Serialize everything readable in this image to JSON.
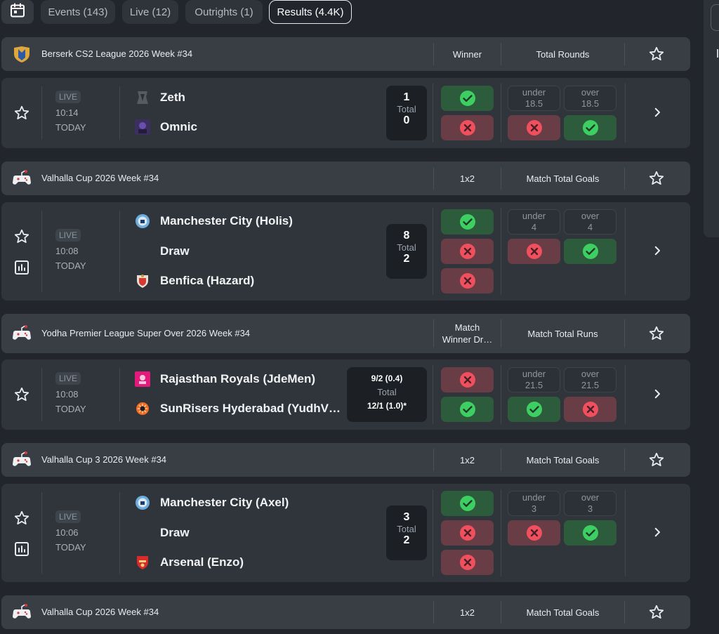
{
  "icons": {
    "calendar": "calendar-icon",
    "star": "star-icon",
    "stats": "stats-icon",
    "check": "check-icon",
    "cross": "cross-icon",
    "chevron": "chevron-right-icon",
    "controller": "gamepad-icon"
  },
  "colors": {
    "win": "#2d5c3c",
    "lose": "#693d46",
    "check_circle": "#3ecf63",
    "cross_circle": "#f0505e"
  },
  "tabs": [
    {
      "label": "Events (143)",
      "active": false
    },
    {
      "label": "Live (12)",
      "active": false
    },
    {
      "label": "Outrights (1)",
      "active": false
    },
    {
      "label": "Results (4.4K)",
      "active": true
    }
  ],
  "leagues": [
    {
      "name": "Berserk CS2 League 2026 Week #34",
      "col1": "Winner",
      "col2": "Total Rounds"
    },
    {
      "name": "Valhalla Cup 2026 Week #34",
      "col1": "1x2",
      "col2": "Match Total Goals"
    },
    {
      "name": "Yodha Premier League Super Over 2026 Week #34",
      "col1": "Match Winner Dr…",
      "col2": "Match Total Runs"
    },
    {
      "name": "Valhalla Cup 3 2026 Week #34",
      "col1": "1x2",
      "col2": "Match Total Goals"
    },
    {
      "name": "Valhalla Cup 2026 Week #34",
      "col1": "1x2",
      "col2": "Match Total Goals"
    }
  ],
  "matches": [
    {
      "live": "LIVE",
      "time": "10:14",
      "day": "TODAY",
      "teams": [
        "Zeth",
        "Omnic"
      ],
      "score": {
        "home": "1",
        "label": "Total",
        "away": "0"
      },
      "results": [
        "win",
        "lose"
      ],
      "totals": {
        "under_label": "under",
        "over_label": "over",
        "line": "18.5",
        "under": "lose",
        "over": "win"
      }
    },
    {
      "live": "LIVE",
      "time": "10:08",
      "day": "TODAY",
      "teams": [
        "Manchester City (Holis)",
        "Draw",
        "Benfica (Hazard)"
      ],
      "score": {
        "home": "8",
        "label": "Total",
        "away": "2"
      },
      "results": [
        "win",
        "lose",
        "lose"
      ],
      "totals": {
        "under_label": "under",
        "over_label": "over",
        "line": "4",
        "under": "lose",
        "over": "win"
      }
    },
    {
      "live": "LIVE",
      "time": "10:08",
      "day": "TODAY",
      "teams": [
        "Rajasthan Royals (JdeMen)",
        "SunRisers Hyderabad (YudhV…"
      ],
      "score": {
        "home": "9/2 (0.4)",
        "label": "Total",
        "away": "12/1 (1.0)*"
      },
      "results": [
        "lose",
        "win"
      ],
      "totals": {
        "under_label": "under",
        "over_label": "over",
        "line": "21.5",
        "under": "win",
        "over": "lose"
      }
    },
    {
      "live": "LIVE",
      "time": "10:06",
      "day": "TODAY",
      "teams": [
        "Manchester City (Axel)",
        "Draw",
        "Arsenal (Enzo)"
      ],
      "score": {
        "home": "3",
        "label": "Total",
        "away": "2"
      },
      "results": [
        "win",
        "lose",
        "lose"
      ],
      "totals": {
        "under_label": "under",
        "over_label": "over",
        "line": "3",
        "under": "lose",
        "over": "win"
      }
    }
  ]
}
